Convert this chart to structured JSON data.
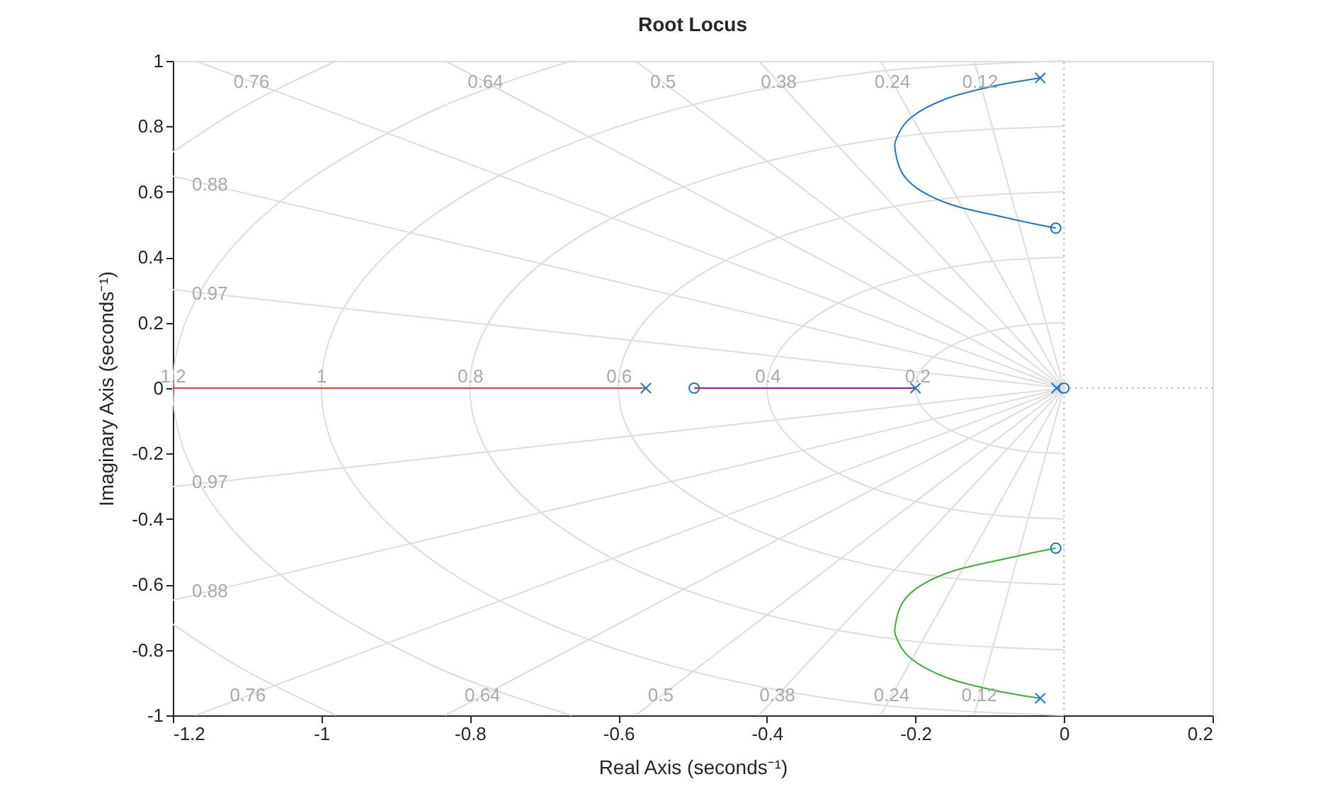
{
  "chart_data": {
    "type": "line",
    "title": "Root Locus",
    "xlabel": "Real Axis (seconds⁻¹)",
    "ylabel": "Imaginary Axis (seconds⁻¹)",
    "xlim": [
      -1.2,
      0.2
    ],
    "ylim": [
      -1,
      1
    ],
    "xticks": [
      -1.2,
      -1,
      -0.8,
      -0.6,
      -0.4,
      -0.2,
      0,
      0.2
    ],
    "yticks": [
      -1,
      -0.8,
      -0.6,
      -0.4,
      -0.2,
      0,
      0.2,
      0.4,
      0.6,
      0.8,
      1
    ],
    "series": [
      {
        "color": "#b0b0b0",
        "line_style": "dotted",
        "x": [
          0,
          0
        ],
        "values": [
          -1,
          1
        ]
      },
      {
        "color": "#b0b0b0",
        "line_style": "dotted",
        "x": [
          0,
          0.2
        ],
        "values": [
          0,
          0
        ]
      },
      {
        "color": "#dedede",
        "x": [
          0,
          -0.052,
          -0.1,
          -0.141,
          -0.173,
          -0.193,
          -0.2,
          -0.193,
          -0.173,
          -0.141,
          -0.1,
          -0.052,
          0
        ],
        "values": [
          0.2,
          0.193,
          0.173,
          0.141,
          0.1,
          0.052,
          0,
          -0.052,
          -0.1,
          -0.141,
          -0.173,
          -0.193,
          -0.2
        ]
      },
      {
        "color": "#dedede",
        "x": [
          0,
          -0.104,
          -0.2,
          -0.283,
          -0.346,
          -0.386,
          -0.4,
          -0.386,
          -0.346,
          -0.283,
          -0.2,
          -0.104,
          0
        ],
        "values": [
          0.4,
          0.386,
          0.346,
          0.283,
          0.2,
          0.104,
          0,
          -0.104,
          -0.2,
          -0.283,
          -0.346,
          -0.386,
          -0.4
        ]
      },
      {
        "color": "#dedede",
        "x": [
          0,
          -0.155,
          -0.3,
          -0.424,
          -0.52,
          -0.58,
          -0.6,
          -0.58,
          -0.52,
          -0.424,
          -0.3,
          -0.155,
          0
        ],
        "values": [
          0.6,
          0.58,
          0.52,
          0.424,
          0.3,
          0.155,
          0,
          -0.155,
          -0.3,
          -0.424,
          -0.52,
          -0.58,
          -0.6
        ]
      },
      {
        "color": "#dedede",
        "x": [
          0,
          -0.207,
          -0.4,
          -0.566,
          -0.693,
          -0.773,
          -0.8,
          -0.773,
          -0.693,
          -0.566,
          -0.4,
          -0.207,
          0
        ],
        "values": [
          0.8,
          0.773,
          0.693,
          0.566,
          0.4,
          0.207,
          0,
          -0.207,
          -0.4,
          -0.566,
          -0.693,
          -0.773,
          -0.8
        ]
      },
      {
        "color": "#dedede",
        "x": [
          0,
          -0.259,
          -0.5,
          -0.707,
          -0.866,
          -0.966,
          -1,
          -0.966,
          -0.866,
          -0.707,
          -0.5,
          -0.259,
          0
        ],
        "values": [
          1,
          0.966,
          0.866,
          0.707,
          0.5,
          0.259,
          0,
          -0.259,
          -0.5,
          -0.707,
          -0.866,
          -0.966,
          -1
        ]
      },
      {
        "color": "#dedede",
        "x": [
          -0.663,
          -0.849,
          -1.039,
          -1.159,
          -1.2,
          -1.159,
          -1.039,
          -0.849,
          -0.663
        ],
        "values": [
          1,
          0.849,
          0.6,
          0.311,
          0,
          -0.311,
          -0.6,
          -0.849,
          -1
        ]
      },
      {
        "color": "#dedede",
        "x": [
          -0.98,
          -1.103,
          -1.2
        ],
        "values": [
          1,
          0.862,
          0.721
        ]
      },
      {
        "color": "#dedede",
        "x": [
          -0.98,
          -1.103,
          -1.2
        ],
        "values": [
          -1,
          -0.862,
          -0.721
        ]
      },
      {
        "color": "#dedede",
        "x": [
          0,
          -1.2
        ],
        "values": [
          0,
          0.301
        ]
      },
      {
        "color": "#dedede",
        "x": [
          0,
          -1.2
        ],
        "values": [
          0,
          -0.301
        ]
      },
      {
        "color": "#dedede",
        "x": [
          0,
          -1.2
        ],
        "values": [
          0,
          0.648
        ]
      },
      {
        "color": "#dedede",
        "x": [
          0,
          -1.2
        ],
        "values": [
          0,
          -0.648
        ]
      },
      {
        "color": "#dedede",
        "x": [
          0,
          -1.169
        ],
        "values": [
          0,
          1
        ]
      },
      {
        "color": "#dedede",
        "x": [
          0,
          -1.169
        ],
        "values": [
          0,
          -1
        ]
      },
      {
        "color": "#dedede",
        "x": [
          0,
          -0.833
        ],
        "values": [
          0,
          1
        ]
      },
      {
        "color": "#dedede",
        "x": [
          0,
          -0.833
        ],
        "values": [
          0,
          -1
        ]
      },
      {
        "color": "#dedede",
        "x": [
          0,
          -0.577
        ],
        "values": [
          0,
          1
        ]
      },
      {
        "color": "#dedede",
        "x": [
          0,
          -0.577
        ],
        "values": [
          0,
          -1
        ]
      },
      {
        "color": "#dedede",
        "x": [
          0,
          -0.411
        ],
        "values": [
          0,
          1
        ]
      },
      {
        "color": "#dedede",
        "x": [
          0,
          -0.411
        ],
        "values": [
          0,
          -1
        ]
      },
      {
        "color": "#dedede",
        "x": [
          0,
          -0.247
        ],
        "values": [
          0,
          1
        ]
      },
      {
        "color": "#dedede",
        "x": [
          0,
          -0.247
        ],
        "values": [
          0,
          -1
        ]
      },
      {
        "color": "#dedede",
        "x": [
          0,
          -0.121
        ],
        "values": [
          0,
          1
        ]
      },
      {
        "color": "#dedede",
        "x": [
          0,
          -0.121
        ],
        "values": [
          0,
          -1
        ]
      },
      {
        "color": "#ff3b2f",
        "x": [
          -1.2,
          -0.563
        ],
        "values": [
          0,
          0
        ]
      },
      {
        "color": "#d4009f",
        "x": [
          -0.498,
          -0.2
        ],
        "values": [
          0,
          0
        ]
      },
      {
        "color": "#1f77c4",
        "x": [
          -0.032,
          -0.097,
          -0.16,
          -0.206,
          -0.225,
          -0.227,
          -0.217,
          -0.192,
          -0.148,
          -0.084,
          -0.04,
          -0.011
        ],
        "values": [
          0.948,
          0.922,
          0.883,
          0.827,
          0.766,
          0.723,
          0.654,
          0.602,
          0.558,
          0.524,
          0.502,
          0.489
        ]
      },
      {
        "color": "#3cae3c",
        "x": [
          -0.032,
          -0.097,
          -0.16,
          -0.206,
          -0.225,
          -0.227,
          -0.217,
          -0.192,
          -0.148,
          -0.084,
          -0.04,
          -0.011
        ],
        "values": [
          -0.948,
          -0.922,
          -0.883,
          -0.827,
          -0.766,
          -0.723,
          -0.654,
          -0.602,
          -0.558,
          -0.524,
          -0.502,
          -0.489
        ]
      },
      {
        "type": "scatter",
        "marker": "cross",
        "color": "#1f77c4",
        "x": [
          -0.032,
          -0.032,
          -0.563,
          -0.2,
          -0.01
        ],
        "values": [
          0.948,
          -0.948,
          0,
          0,
          0
        ]
      },
      {
        "type": "scatter",
        "marker": "circle",
        "color": "#1f77c4",
        "x": [
          -0.011,
          -0.011,
          -0.498,
          0
        ],
        "values": [
          0.489,
          -0.489,
          0,
          0
        ]
      }
    ],
    "annotations": [
      {
        "text": "0.76",
        "x": -1.094,
        "y": 0.935
      },
      {
        "text": "0.64",
        "x": -0.779,
        "y": 0.935
      },
      {
        "text": "0.5",
        "x": -0.54,
        "y": 0.935
      },
      {
        "text": "0.38",
        "x": -0.384,
        "y": 0.935
      },
      {
        "text": "0.24",
        "x": -0.231,
        "y": 0.935
      },
      {
        "text": "0.12",
        "x": -0.113,
        "y": 0.935
      },
      {
        "text": "0.88",
        "x": -1.15,
        "y": 0.621
      },
      {
        "text": "0.97",
        "x": -1.15,
        "y": 0.288
      },
      {
        "text": "0.76",
        "x": -1.099,
        "y": -0.94
      },
      {
        "text": "0.64",
        "x": -0.783,
        "y": -0.94
      },
      {
        "text": "0.5",
        "x": -0.543,
        "y": -0.94
      },
      {
        "text": "0.38",
        "x": -0.386,
        "y": -0.94
      },
      {
        "text": "0.24",
        "x": -0.232,
        "y": -0.94
      },
      {
        "text": "0.12",
        "x": -0.114,
        "y": -0.94
      },
      {
        "text": "0.88",
        "x": -1.15,
        "y": -0.621
      },
      {
        "text": "0.97",
        "x": -1.15,
        "y": -0.288
      },
      {
        "text": "1.2",
        "x": -1.1995,
        "y": 0.035
      },
      {
        "text": "1",
        "x": -0.9994,
        "y": 0.035
      },
      {
        "text": "0.8",
        "x": -0.7992,
        "y": 0.035
      },
      {
        "text": "0.6",
        "x": -0.599,
        "y": 0.035
      },
      {
        "text": "0.4",
        "x": -0.3985,
        "y": 0.035
      },
      {
        "text": "0.2",
        "x": -0.1969,
        "y": 0.035
      }
    ]
  }
}
